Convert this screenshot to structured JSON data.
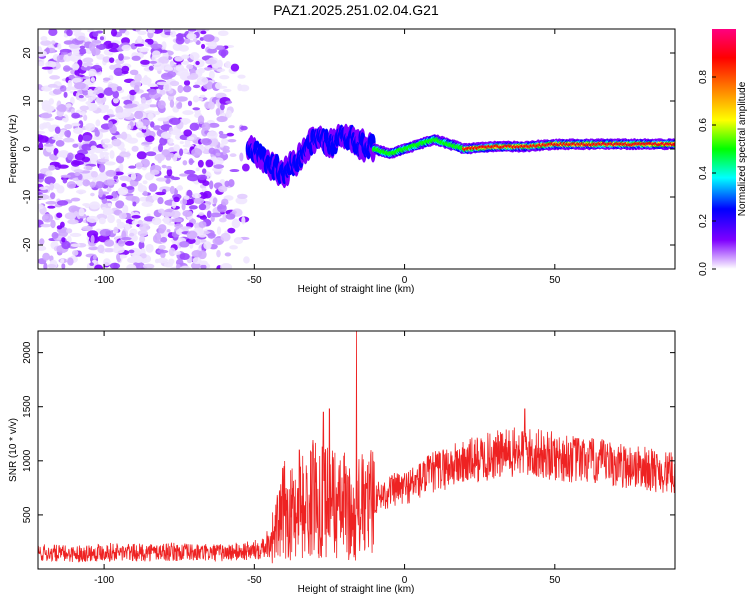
{
  "title": "PAZ1.2025.251.02.04.G21",
  "chart_data": [
    {
      "type": "heatmap",
      "xlabel": "Height of straight line (km)",
      "ylabel": "Frequency (Hz)",
      "xlim": [
        -122,
        90
      ],
      "ylim": [
        -25,
        25
      ],
      "xticks": [
        -100,
        -50,
        0,
        50
      ],
      "yticks": [
        20,
        10,
        0,
        -10,
        -20
      ],
      "colorbar": {
        "label": "Normalized spectral amplitude",
        "range": [
          0,
          1
        ],
        "ticks": [
          0.0,
          0.2,
          0.4,
          0.6,
          0.8
        ],
        "colormap": [
          "#ffffff",
          "#7f00ff",
          "#0000ff",
          "#00ffff",
          "#00ff00",
          "#ffff00",
          "#ff8000",
          "#ff0000",
          "#ff0080"
        ]
      },
      "ridge": {
        "x": [
          -52,
          -45,
          -40,
          -35,
          -30,
          -25,
          -20,
          -15,
          -10,
          -5,
          0,
          5,
          10,
          15,
          20,
          30,
          40,
          50,
          60,
          70,
          80,
          90
        ],
        "frequency": [
          0,
          -3,
          -5,
          -2,
          2,
          1,
          3,
          1,
          0,
          -1,
          0,
          1,
          2,
          1,
          0,
          0.5,
          0.5,
          1,
          1,
          1,
          1,
          1
        ]
      }
    },
    {
      "type": "line",
      "xlabel": "Height of straight line (km)",
      "ylabel": "SNR (10 * v/v)",
      "xlim": [
        -122,
        90
      ],
      "ylim": [
        0,
        2200
      ],
      "xticks": [
        -100,
        -50,
        0,
        50
      ],
      "yticks": [
        500,
        1000,
        1500,
        2000
      ],
      "color": "#ee2222",
      "series": [
        {
          "x": [
            -122,
            -110,
            -100,
            -90,
            -80,
            -70,
            -60,
            -50,
            -45,
            -42,
            -40,
            -38,
            -35,
            -32,
            -30,
            -28,
            -25,
            -22,
            -20,
            -17,
            -15,
            -13,
            -10,
            -5,
            0,
            5,
            10,
            15,
            20,
            25,
            30,
            35,
            40,
            45,
            50,
            55,
            60,
            65,
            70,
            75,
            80,
            85,
            90
          ],
          "values": [
            150,
            140,
            160,
            150,
            160,
            150,
            150,
            170,
            250,
            400,
            550,
            500,
            600,
            550,
            700,
            650,
            700,
            550,
            600,
            450,
            600,
            550,
            650,
            720,
            750,
            820,
            900,
            950,
            980,
            1020,
            1050,
            1070,
            1080,
            1060,
            1040,
            1020,
            1000,
            990,
            960,
            950,
            930,
            900,
            880
          ]
        }
      ],
      "spikes": [
        {
          "x": -16,
          "value": 2200
        },
        {
          "x": -25,
          "value": 1480
        },
        {
          "x": -27,
          "value": 1450
        },
        {
          "x": -35,
          "value": 1100
        },
        {
          "x": 40,
          "value": 1480
        }
      ]
    }
  ]
}
